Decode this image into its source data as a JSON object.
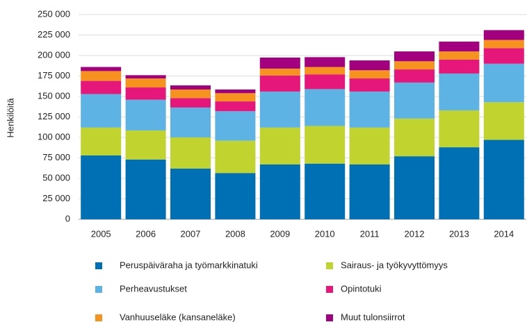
{
  "chart_data": {
    "type": "stacked_bar",
    "y_label": "Henkilöitä",
    "categories": [
      "2005",
      "2006",
      "2007",
      "2008",
      "2009",
      "2010",
      "2011",
      "2012",
      "2013",
      "2014"
    ],
    "series": [
      {
        "name": "Peruspäiväraha ja työmarkkinatuki",
        "color": "#0070b4",
        "values": [
          78000,
          73000,
          62000,
          56500,
          67000,
          68000,
          67000,
          77000,
          88000,
          97000
        ]
      },
      {
        "name": "Sairaus- ja työkyvyttömyys",
        "color": "#c1d32f",
        "values": [
          34000,
          35500,
          38000,
          39500,
          45000,
          46000,
          45000,
          46000,
          45000,
          46000
        ]
      },
      {
        "name": "Perheavustukset",
        "color": "#5cb3e4",
        "values": [
          41000,
          37500,
          36500,
          36000,
          44000,
          45000,
          44000,
          44000,
          45000,
          47000
        ]
      },
      {
        "name": "Opintotuki",
        "color": "#e5177b",
        "values": [
          16000,
          15000,
          11500,
          12000,
          19500,
          18000,
          16000,
          16000,
          17000,
          19000
        ]
      },
      {
        "name": "Vanhuuseläke (kansaneläke)",
        "color": "#f6931e",
        "values": [
          12000,
          11000,
          10500,
          10000,
          8500,
          9000,
          10000,
          10000,
          10000,
          10000
        ]
      },
      {
        "name": "Muut tulonsiirrot",
        "color": "#a2007e",
        "values": [
          5000,
          4000,
          5000,
          4500,
          13500,
          12000,
          12000,
          12000,
          12000,
          12000
        ]
      }
    ],
    "ylim": [
      0,
      250000
    ],
    "yticks": [
      0,
      {
        "value": 25000,
        "label": "25 000"
      },
      {
        "value": 50000,
        "label": "50 000"
      },
      {
        "value": 75000,
        "label": "75 000"
      },
      {
        "value": 100000,
        "label": "100 000"
      },
      {
        "value": 125000,
        "label": "125 000"
      },
      {
        "value": 150000,
        "label": "150 000"
      },
      {
        "value": 175000,
        "label": "175 000"
      },
      {
        "value": 200000,
        "label": "200 000"
      },
      {
        "value": 225000,
        "label": "225 000"
      },
      {
        "value": 250000,
        "label": "250 000"
      }
    ],
    "grid": true
  }
}
